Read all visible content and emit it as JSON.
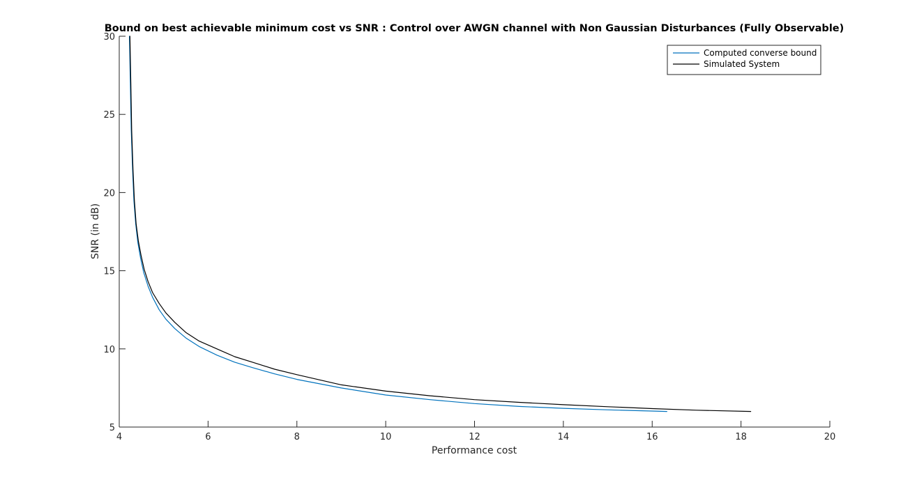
{
  "chart_data": {
    "type": "line",
    "title": "Bound on best achievable minimum cost vs SNR  : Control over AWGN channel with Non Gaussian Disturbances (Fully Observable)",
    "xlabel": "Performance cost",
    "ylabel": "SNR (in dB)",
    "xlim": [
      4,
      20
    ],
    "ylim": [
      5,
      30
    ],
    "xticks": [
      4,
      6,
      8,
      10,
      12,
      14,
      16,
      18,
      20
    ],
    "yticks": [
      5,
      10,
      15,
      20,
      25,
      30
    ],
    "grid": false,
    "legend_position": "top-right",
    "series": [
      {
        "name": "Computed converse bound",
        "color": "#0072BD",
        "x": [
          4.23,
          4.25,
          4.27,
          4.3,
          4.33,
          4.37,
          4.42,
          4.48,
          4.55,
          4.65,
          4.75,
          4.9,
          5.05,
          5.25,
          5.5,
          5.8,
          6.2,
          6.6,
          7.0,
          7.5,
          8.0,
          9.0,
          10.0,
          11.0,
          12.0,
          13.0,
          14.0,
          15.0,
          16.33
        ],
        "y": [
          30,
          27,
          24,
          21.5,
          19.5,
          18,
          16.8,
          15.8,
          14.9,
          14.0,
          13.3,
          12.5,
          11.9,
          11.3,
          10.7,
          10.15,
          9.6,
          9.15,
          8.8,
          8.4,
          8.05,
          7.5,
          7.05,
          6.75,
          6.5,
          6.32,
          6.2,
          6.1,
          6.0
        ]
      },
      {
        "name": "Simulated System",
        "color": "#000000",
        "x": [
          4.24,
          4.26,
          4.28,
          4.31,
          4.34,
          4.38,
          4.43,
          4.49,
          4.56,
          4.65,
          4.75,
          4.9,
          5.05,
          5.25,
          5.5,
          5.8,
          6.2,
          6.6,
          7.0,
          7.5,
          8.0,
          9.0,
          10.0,
          11.0,
          12.0,
          13.0,
          14.0,
          15.0,
          16.0,
          17.0,
          18.22
        ],
        "y": [
          30,
          27,
          24,
          21.5,
          19.5,
          18,
          16.9,
          16.0,
          15.1,
          14.3,
          13.6,
          12.9,
          12.3,
          11.7,
          11.05,
          10.5,
          10.0,
          9.5,
          9.15,
          8.7,
          8.35,
          7.7,
          7.3,
          7.0,
          6.75,
          6.58,
          6.43,
          6.3,
          6.18,
          6.08,
          6.0
        ]
      }
    ]
  }
}
